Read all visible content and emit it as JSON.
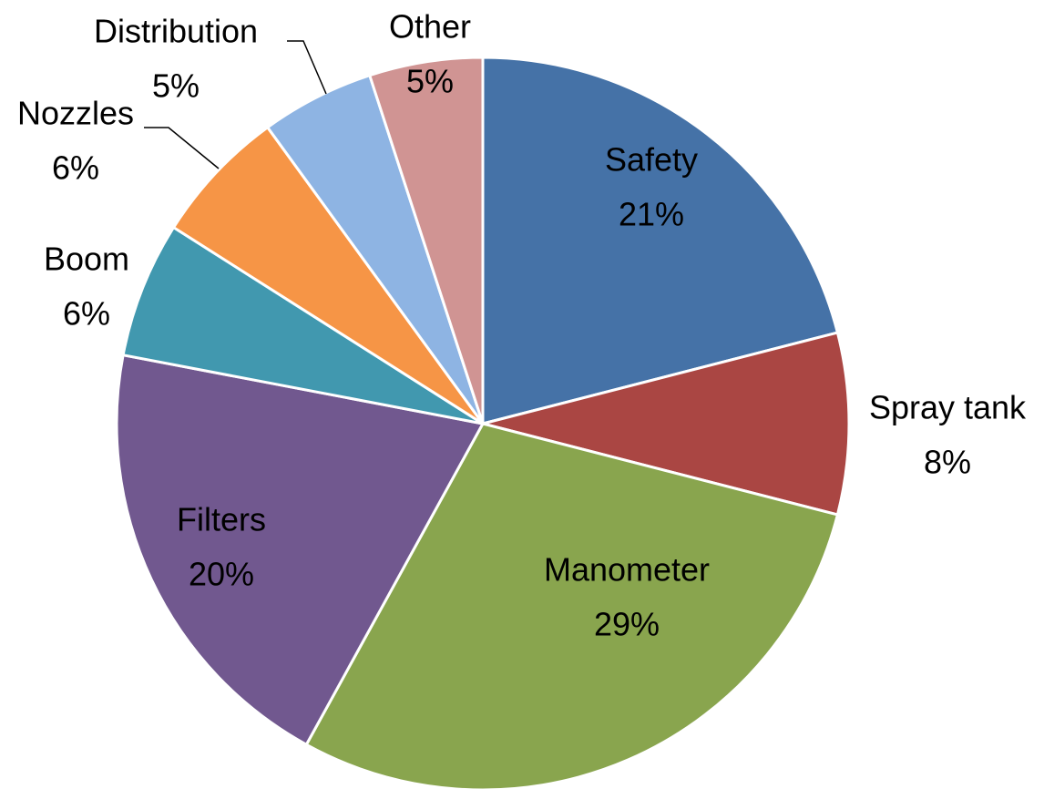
{
  "chart_data": {
    "type": "pie",
    "categories": [
      "Safety",
      "Spray tank",
      "Manometer",
      "Filters",
      "Boom",
      "Nozzles",
      "Distribution",
      "Other"
    ],
    "values": [
      21,
      8,
      29,
      20,
      6,
      6,
      5,
      5
    ],
    "value_labels": [
      "21%",
      "8%",
      "29%",
      "20%",
      "6%",
      "6%",
      "5%",
      "5%"
    ],
    "colors": [
      "#4572a7",
      "#aa4643",
      "#89a54e",
      "#71588f",
      "#4198af",
      "#f69546",
      "#8eb4e3",
      "#d09493"
    ]
  }
}
